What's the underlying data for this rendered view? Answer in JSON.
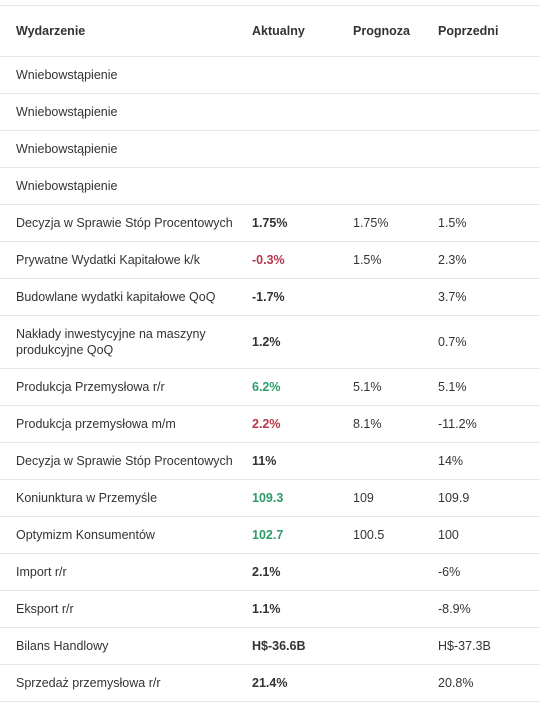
{
  "table": {
    "header": [
      "Wydarzenie",
      "Aktualny",
      "Prognoza",
      "Poprzedni"
    ],
    "rows": [
      {
        "event": "Wniebowstąpienie",
        "actual": null,
        "forecast": null,
        "previous": null,
        "actual_color": null
      },
      {
        "event": "Wniebowstąpienie",
        "actual": null,
        "forecast": null,
        "previous": null,
        "actual_color": null
      },
      {
        "event": "Wniebowstąpienie",
        "actual": null,
        "forecast": null,
        "previous": null,
        "actual_color": null
      },
      {
        "event": "Wniebowstąpienie",
        "actual": null,
        "forecast": null,
        "previous": null,
        "actual_color": null
      },
      {
        "event": "Decyzja w Sprawie Stóp Procentowych",
        "actual": "1.75%",
        "forecast": "1.75%",
        "previous": "1.5%",
        "actual_color": "#333333"
      },
      {
        "event": "Prywatne Wydatki Kapitałowe k/k",
        "actual": "-0.3%",
        "forecast": "1.5%",
        "previous": "2.3%",
        "actual_color": "#b8364a"
      },
      {
        "event": "Budowlane wydatki kapitałowe QoQ",
        "actual": "-1.7%",
        "forecast": null,
        "previous": "3.7%",
        "actual_color": "#333333"
      },
      {
        "event": "Nakłady inwestycyjne na maszyny produkcyjne QoQ",
        "actual": "1.2%",
        "forecast": null,
        "previous": "0.7%",
        "actual_color": "#333333"
      },
      {
        "event": "Produkcja Przemysłowa r/r",
        "actual": "6.2%",
        "forecast": "5.1%",
        "previous": "5.1%",
        "actual_color": "#2e9b6b"
      },
      {
        "event": "Produkcja przemysłowa m/m",
        "actual": "2.2%",
        "forecast": "8.1%",
        "previous": "-11.2%",
        "actual_color": "#b8364a"
      },
      {
        "event": "Decyzja w Sprawie Stóp Procentowych",
        "actual": "11%",
        "forecast": null,
        "previous": "14%",
        "actual_color": "#333333"
      },
      {
        "event": "Koniunktura w Przemyśle",
        "actual": "109.3",
        "forecast": "109",
        "previous": "109.9",
        "actual_color": "#2e9b6b"
      },
      {
        "event": "Optymizm Konsumentów",
        "actual": "102.7",
        "forecast": "100.5",
        "previous": "100",
        "actual_color": "#2e9b6b"
      },
      {
        "event": "Import r/r",
        "actual": "2.1%",
        "forecast": null,
        "previous": "-6%",
        "actual_color": "#333333"
      },
      {
        "event": "Eksport r/r",
        "actual": "1.1%",
        "forecast": null,
        "previous": "-8.9%",
        "actual_color": "#333333"
      },
      {
        "event": "Bilans Handlowy",
        "actual": "H$-36.6B",
        "forecast": null,
        "previous": "H$-37.3B",
        "actual_color": "#333333"
      },
      {
        "event": "Sprzedaż przemysłowa r/r",
        "actual": "21.4%",
        "forecast": null,
        "previous": "20.8%",
        "actual_color": "#333333"
      }
    ]
  }
}
